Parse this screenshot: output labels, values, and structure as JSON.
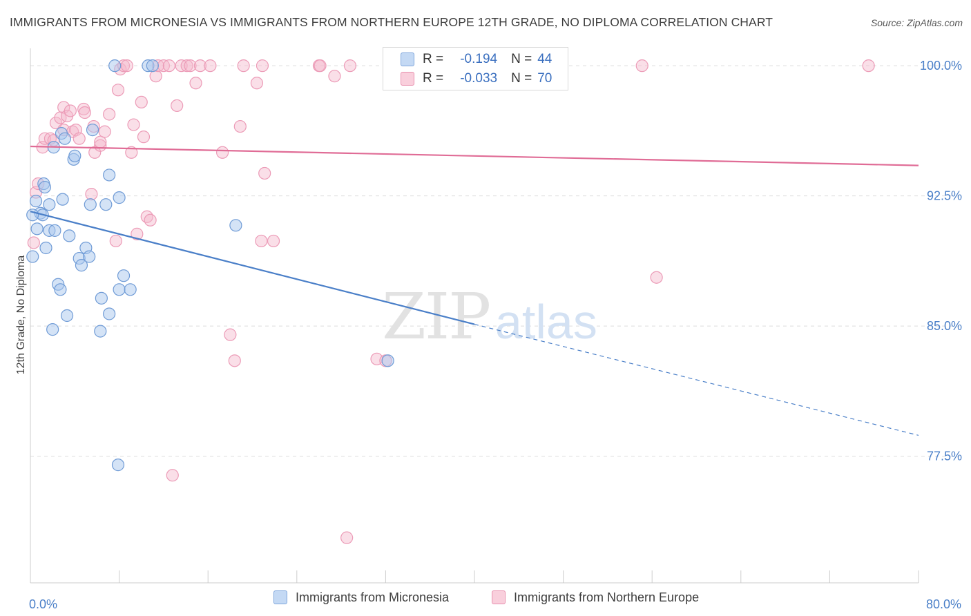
{
  "title": "IMMIGRANTS FROM MICRONESIA VS IMMIGRANTS FROM NORTHERN EUROPE 12TH GRADE, NO DIPLOMA CORRELATION CHART",
  "source": "Source: ZipAtlas.com",
  "colors": {
    "blue": "#4a7fc8",
    "blue_fill": "#aac8ee",
    "pink": "#e06c96",
    "pink_fill": "#f5b8cc",
    "value_text": "#3a6fbf"
  },
  "legend": {
    "rows": [
      {
        "r_label": "R =",
        "r_value": "-0.194",
        "n_label": "N =",
        "n_value": "44"
      },
      {
        "r_label": "R =",
        "r_value": "-0.033",
        "n_label": "N =",
        "n_value": "70"
      }
    ]
  },
  "watermark": {
    "zip": "ZIP",
    "atlas": "atlas"
  },
  "chart_data": {
    "type": "scatter",
    "title": "IMMIGRANTS FROM MICRONESIA VS IMMIGRANTS FROM NORTHERN EUROPE 12TH GRADE, NO DIPLOMA CORRELATION CHART",
    "xlabel": "",
    "ylabel": "12th Grade, No Diploma",
    "xlim": [
      0,
      80
    ],
    "ylim": [
      70.2,
      101.0
    ],
    "x_tick_labels": [
      "0.0%",
      "80.0%"
    ],
    "y_ticks": [
      77.5,
      85.0,
      92.5,
      100.0
    ],
    "y_tick_labels": [
      "77.5%",
      "85.0%",
      "92.5%",
      "100.0%"
    ],
    "grid": true,
    "legend_position": "top-center",
    "series": [
      {
        "name": "Immigrants from Micronesia",
        "color": "#4a7fc8",
        "trend": {
          "x_solid": [
            0,
            40
          ],
          "y_solid": [
            91.6,
            85.1
          ],
          "x_dashed": [
            40,
            80
          ],
          "y_dashed": [
            85.1,
            78.7
          ]
        },
        "points": [
          [
            0.2,
            89.0
          ],
          [
            0.5,
            92.2
          ],
          [
            0.6,
            90.6
          ],
          [
            0.9,
            91.5
          ],
          [
            1.1,
            91.4
          ],
          [
            1.2,
            93.2
          ],
          [
            1.3,
            93.0
          ],
          [
            1.4,
            89.5
          ],
          [
            1.7,
            92.0
          ],
          [
            1.7,
            90.5
          ],
          [
            2.0,
            84.8
          ],
          [
            2.1,
            95.3
          ],
          [
            2.2,
            90.5
          ],
          [
            2.5,
            87.4
          ],
          [
            2.7,
            87.1
          ],
          [
            2.8,
            96.1
          ],
          [
            2.9,
            92.3
          ],
          [
            3.1,
            95.8
          ],
          [
            3.3,
            85.6
          ],
          [
            3.5,
            90.2
          ],
          [
            3.9,
            94.6
          ],
          [
            4.0,
            94.8
          ],
          [
            4.4,
            88.9
          ],
          [
            4.6,
            88.5
          ],
          [
            5.0,
            89.5
          ],
          [
            5.3,
            89.0
          ],
          [
            5.4,
            92.0
          ],
          [
            5.6,
            96.3
          ],
          [
            6.3,
            84.7
          ],
          [
            6.4,
            86.6
          ],
          [
            6.8,
            92.0
          ],
          [
            7.1,
            93.7
          ],
          [
            7.1,
            85.7
          ],
          [
            7.6,
            100.0
          ],
          [
            7.9,
            77.0
          ],
          [
            8.0,
            92.4
          ],
          [
            8.0,
            87.1
          ],
          [
            8.4,
            87.9
          ],
          [
            9.0,
            87.1
          ],
          [
            10.6,
            100.0
          ],
          [
            11.0,
            100.0
          ],
          [
            18.5,
            90.8
          ],
          [
            32.2,
            83.0
          ],
          [
            0.2,
            91.4
          ]
        ]
      },
      {
        "name": "Immigrants from Northern Europe",
        "color": "#e06c96",
        "trend": {
          "x": [
            0,
            80
          ],
          "y": [
            95.35,
            94.25
          ]
        },
        "points": [
          [
            0.3,
            89.8
          ],
          [
            0.5,
            92.7
          ],
          [
            0.7,
            93.2
          ],
          [
            1.1,
            95.3
          ],
          [
            1.3,
            95.8
          ],
          [
            1.8,
            95.8
          ],
          [
            2.1,
            95.7
          ],
          [
            2.3,
            96.7
          ],
          [
            2.7,
            97.0
          ],
          [
            3.0,
            96.3
          ],
          [
            3.0,
            97.6
          ],
          [
            3.3,
            97.1
          ],
          [
            3.6,
            97.4
          ],
          [
            3.8,
            96.2
          ],
          [
            4.1,
            96.3
          ],
          [
            4.4,
            95.8
          ],
          [
            4.8,
            97.5
          ],
          [
            4.9,
            97.3
          ],
          [
            5.5,
            92.6
          ],
          [
            5.7,
            96.5
          ],
          [
            5.8,
            95.0
          ],
          [
            6.3,
            95.4
          ],
          [
            6.3,
            95.6
          ],
          [
            6.7,
            96.2
          ],
          [
            7.1,
            97.2
          ],
          [
            7.7,
            89.9
          ],
          [
            7.9,
            98.6
          ],
          [
            8.1,
            99.8
          ],
          [
            8.4,
            100.0
          ],
          [
            8.7,
            100.0
          ],
          [
            9.1,
            95.0
          ],
          [
            9.3,
            96.6
          ],
          [
            9.6,
            90.3
          ],
          [
            10.0,
            97.9
          ],
          [
            10.2,
            95.9
          ],
          [
            10.5,
            91.3
          ],
          [
            10.8,
            91.1
          ],
          [
            11.3,
            99.4
          ],
          [
            11.5,
            100.0
          ],
          [
            12.0,
            100.0
          ],
          [
            12.5,
            100.0
          ],
          [
            13.2,
            97.7
          ],
          [
            13.6,
            100.0
          ],
          [
            14.1,
            100.0
          ],
          [
            14.4,
            100.0
          ],
          [
            14.9,
            99.0
          ],
          [
            15.3,
            100.0
          ],
          [
            16.2,
            100.0
          ],
          [
            17.3,
            95.0
          ],
          [
            18.0,
            84.5
          ],
          [
            18.4,
            83.0
          ],
          [
            18.9,
            96.5
          ],
          [
            19.2,
            100.0
          ],
          [
            20.4,
            99.0
          ],
          [
            20.8,
            89.9
          ],
          [
            20.9,
            100.0
          ],
          [
            21.1,
            93.8
          ],
          [
            21.9,
            89.9
          ],
          [
            26.0,
            100.0
          ],
          [
            26.1,
            100.0
          ],
          [
            27.4,
            99.4
          ],
          [
            28.5,
            72.8
          ],
          [
            28.8,
            100.0
          ],
          [
            31.2,
            83.1
          ],
          [
            32.0,
            83.0
          ],
          [
            33.3,
            100.0
          ],
          [
            55.1,
            100.0
          ],
          [
            56.4,
            87.8
          ],
          [
            75.5,
            100.0
          ],
          [
            12.8,
            76.4
          ]
        ]
      }
    ]
  }
}
